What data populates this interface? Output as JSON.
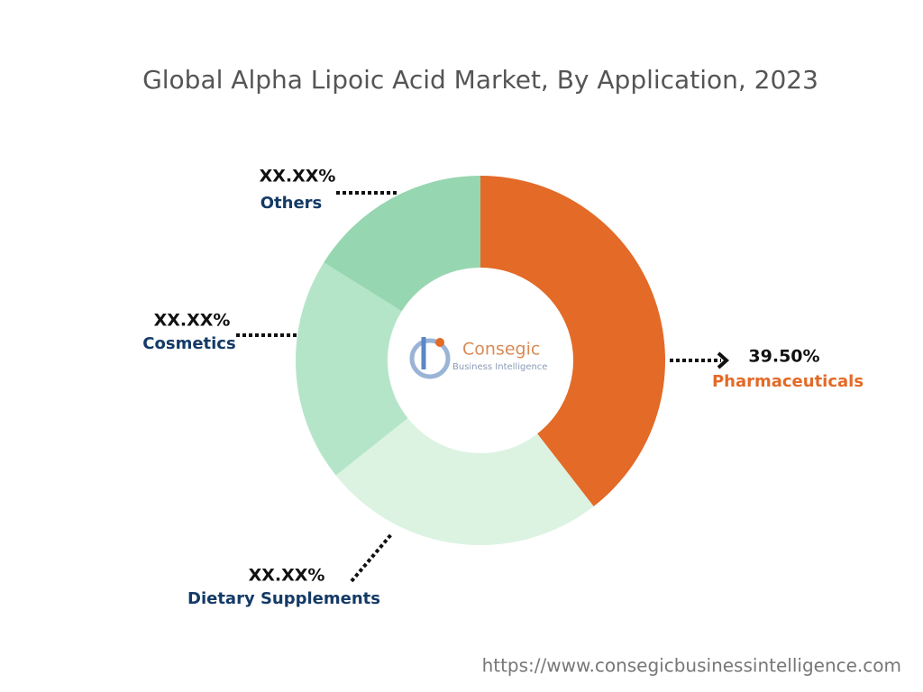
{
  "chart_data": {
    "type": "donut",
    "title": "Global Alpha Lipoic Acid Market, By Application, 2023",
    "categories": [
      "Pharmaceuticals",
      "Dietary Supplements",
      "Cosmetics",
      "Others"
    ],
    "values": [
      39.5,
      24.8,
      19.6,
      16.1
    ],
    "value_labels": [
      "39.50%",
      "XX.XX%",
      "XX.XX%",
      "XX.XX%"
    ],
    "colors": [
      "#e36a27",
      "#dcf3e2",
      "#b5e5c8",
      "#96d6b0"
    ],
    "label_colors": [
      "#e36a27",
      "#143a66",
      "#143a66",
      "#143a66"
    ]
  },
  "logo": {
    "name": "Consegic",
    "tagline": "Business Intelligence"
  },
  "source": "https://www.consegicbusinessintelligence.com"
}
